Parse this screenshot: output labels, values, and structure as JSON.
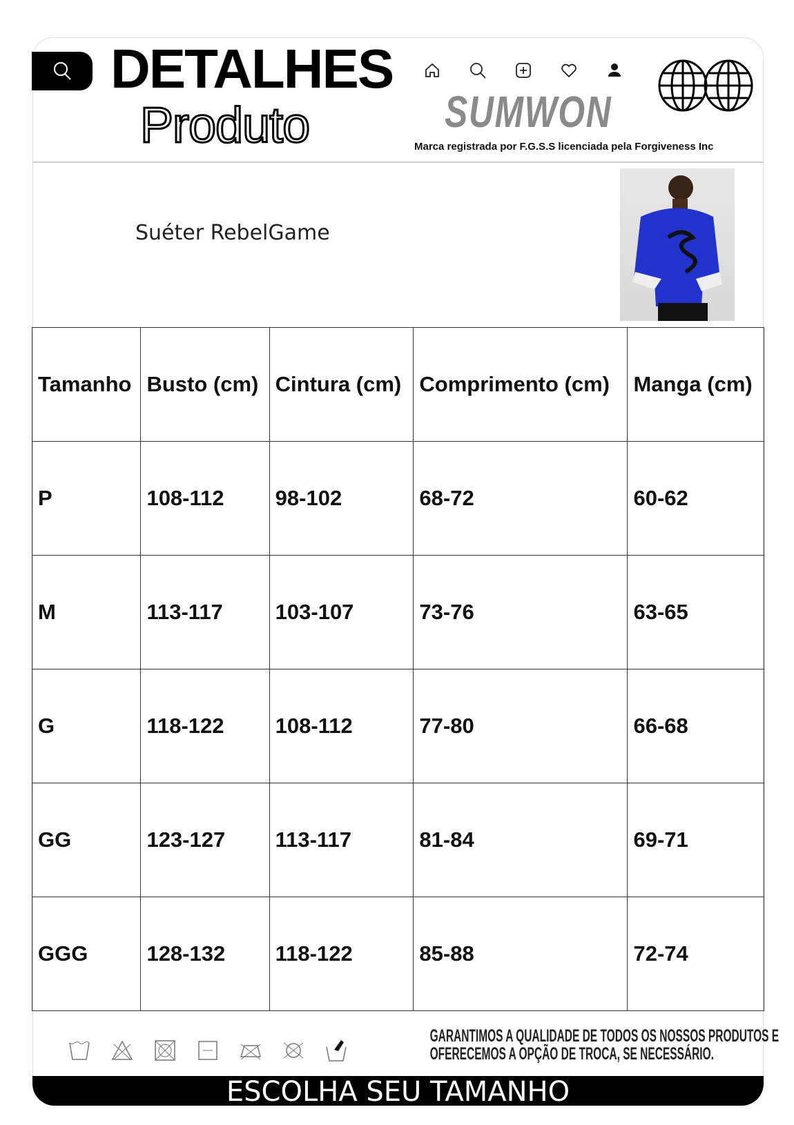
{
  "header": {
    "title_line1": "DETALHES",
    "title_line2": "Produto",
    "brand": "SUMWON",
    "trademark": "Marca registrada por F.G.S.S licenciada pela Forgiveness Inc",
    "nav_icons": [
      "home-icon",
      "search-icon",
      "add-icon",
      "heart-icon",
      "user-icon"
    ]
  },
  "product": {
    "name": "Suéter RebelGame",
    "accent_color": "#2233cc"
  },
  "table": {
    "headers": [
      "Tamanho",
      "Busto (cm)",
      "Cintura (cm)",
      "Comprimento (cm)",
      "Manga (cm)"
    ],
    "rows": [
      [
        "P",
        "108-112",
        "98-102",
        "68-72",
        "60-62"
      ],
      [
        "M",
        "113-117",
        "103-107",
        "73-76",
        "63-65"
      ],
      [
        "G",
        "118-122",
        "108-112",
        "77-80",
        "66-68"
      ],
      [
        "GG",
        "123-127",
        "113-117",
        "81-84",
        "69-71"
      ],
      [
        "GGG",
        "128-132",
        "118-122",
        "85-88",
        "72-74"
      ]
    ]
  },
  "footer": {
    "guarantee_line1": "GARANTIMOS A QUALIDADE DE TODOS OS NOSSOS PRODUTOS E",
    "guarantee_line2": "OFERECEMOS A OPÇÃO DE TROCA, SE NECESSÁRIO.",
    "cta": "ESCOLHA SEU TAMANHO"
  }
}
